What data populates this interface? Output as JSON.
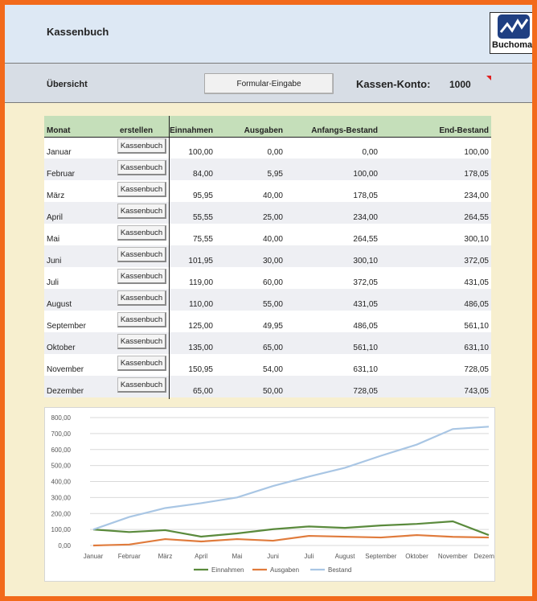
{
  "header": {
    "title": "Kassenbuch",
    "logo_text": "Buchomat"
  },
  "toolbar": {
    "label": "Übersicht",
    "form_button": "Formular-Eingabe",
    "konto_label": "Kassen-Konto:",
    "konto_value": "1000"
  },
  "table": {
    "headers": {
      "monat": "Monat",
      "erstellen": "erstellen",
      "einnahmen": "Einnahmen",
      "ausgaben": "Ausgaben",
      "anfang": "Anfangs-Bestand",
      "ende": "End-Bestand"
    },
    "button_label": "Kassenbuch",
    "rows": [
      {
        "monat": "Januar",
        "ein": "100,00",
        "aus": "0,00",
        "anf": "0,00",
        "end": "100,00"
      },
      {
        "monat": "Februar",
        "ein": "84,00",
        "aus": "5,95",
        "anf": "100,00",
        "end": "178,05"
      },
      {
        "monat": "März",
        "ein": "95,95",
        "aus": "40,00",
        "anf": "178,05",
        "end": "234,00"
      },
      {
        "monat": "April",
        "ein": "55,55",
        "aus": "25,00",
        "anf": "234,00",
        "end": "264,55"
      },
      {
        "monat": "Mai",
        "ein": "75,55",
        "aus": "40,00",
        "anf": "264,55",
        "end": "300,10"
      },
      {
        "monat": "Juni",
        "ein": "101,95",
        "aus": "30,00",
        "anf": "300,10",
        "end": "372,05"
      },
      {
        "monat": "Juli",
        "ein": "119,00",
        "aus": "60,00",
        "anf": "372,05",
        "end": "431,05"
      },
      {
        "monat": "August",
        "ein": "110,00",
        "aus": "55,00",
        "anf": "431,05",
        "end": "486,05"
      },
      {
        "monat": "September",
        "ein": "125,00",
        "aus": "49,95",
        "anf": "486,05",
        "end": "561,10"
      },
      {
        "monat": "Oktober",
        "ein": "135,00",
        "aus": "65,00",
        "anf": "561,10",
        "end": "631,10"
      },
      {
        "monat": "November",
        "ein": "150,95",
        "aus": "54,00",
        "anf": "631,10",
        "end": "728,05"
      },
      {
        "monat": "Dezember",
        "ein": "65,00",
        "aus": "50,00",
        "anf": "728,05",
        "end": "743,05"
      }
    ]
  },
  "colors": {
    "einnahmen": "#5a8a3c",
    "ausgaben": "#e07b3c",
    "bestand": "#a9c6e4",
    "header_green": "#c5dfba",
    "frame_orange": "#f26a1b"
  },
  "chart_data": {
    "type": "line",
    "categories": [
      "Januar",
      "Februar",
      "März",
      "April",
      "Mai",
      "Juni",
      "Juli",
      "August",
      "September",
      "Oktober",
      "November",
      "Dezember"
    ],
    "series": [
      {
        "name": "Einnahmen",
        "values": [
          100,
          84,
          95.95,
          55.55,
          75.55,
          101.95,
          119,
          110,
          125,
          135,
          150.95,
          65
        ]
      },
      {
        "name": "Ausgaben",
        "values": [
          0,
          5.95,
          40,
          25,
          40,
          30,
          60,
          55,
          49.95,
          65,
          54,
          50
        ]
      },
      {
        "name": "Bestand",
        "values": [
          100,
          178.05,
          234,
          264.55,
          300.1,
          372.05,
          431.05,
          486.05,
          561.1,
          631.1,
          728.05,
          743.05
        ]
      }
    ],
    "yticks": [
      "0,00",
      "100,00",
      "200,00",
      "300,00",
      "400,00",
      "500,00",
      "600,00",
      "700,00",
      "800,00"
    ],
    "ylim": [
      0,
      800
    ],
    "grid": true,
    "legend": "bottom"
  }
}
